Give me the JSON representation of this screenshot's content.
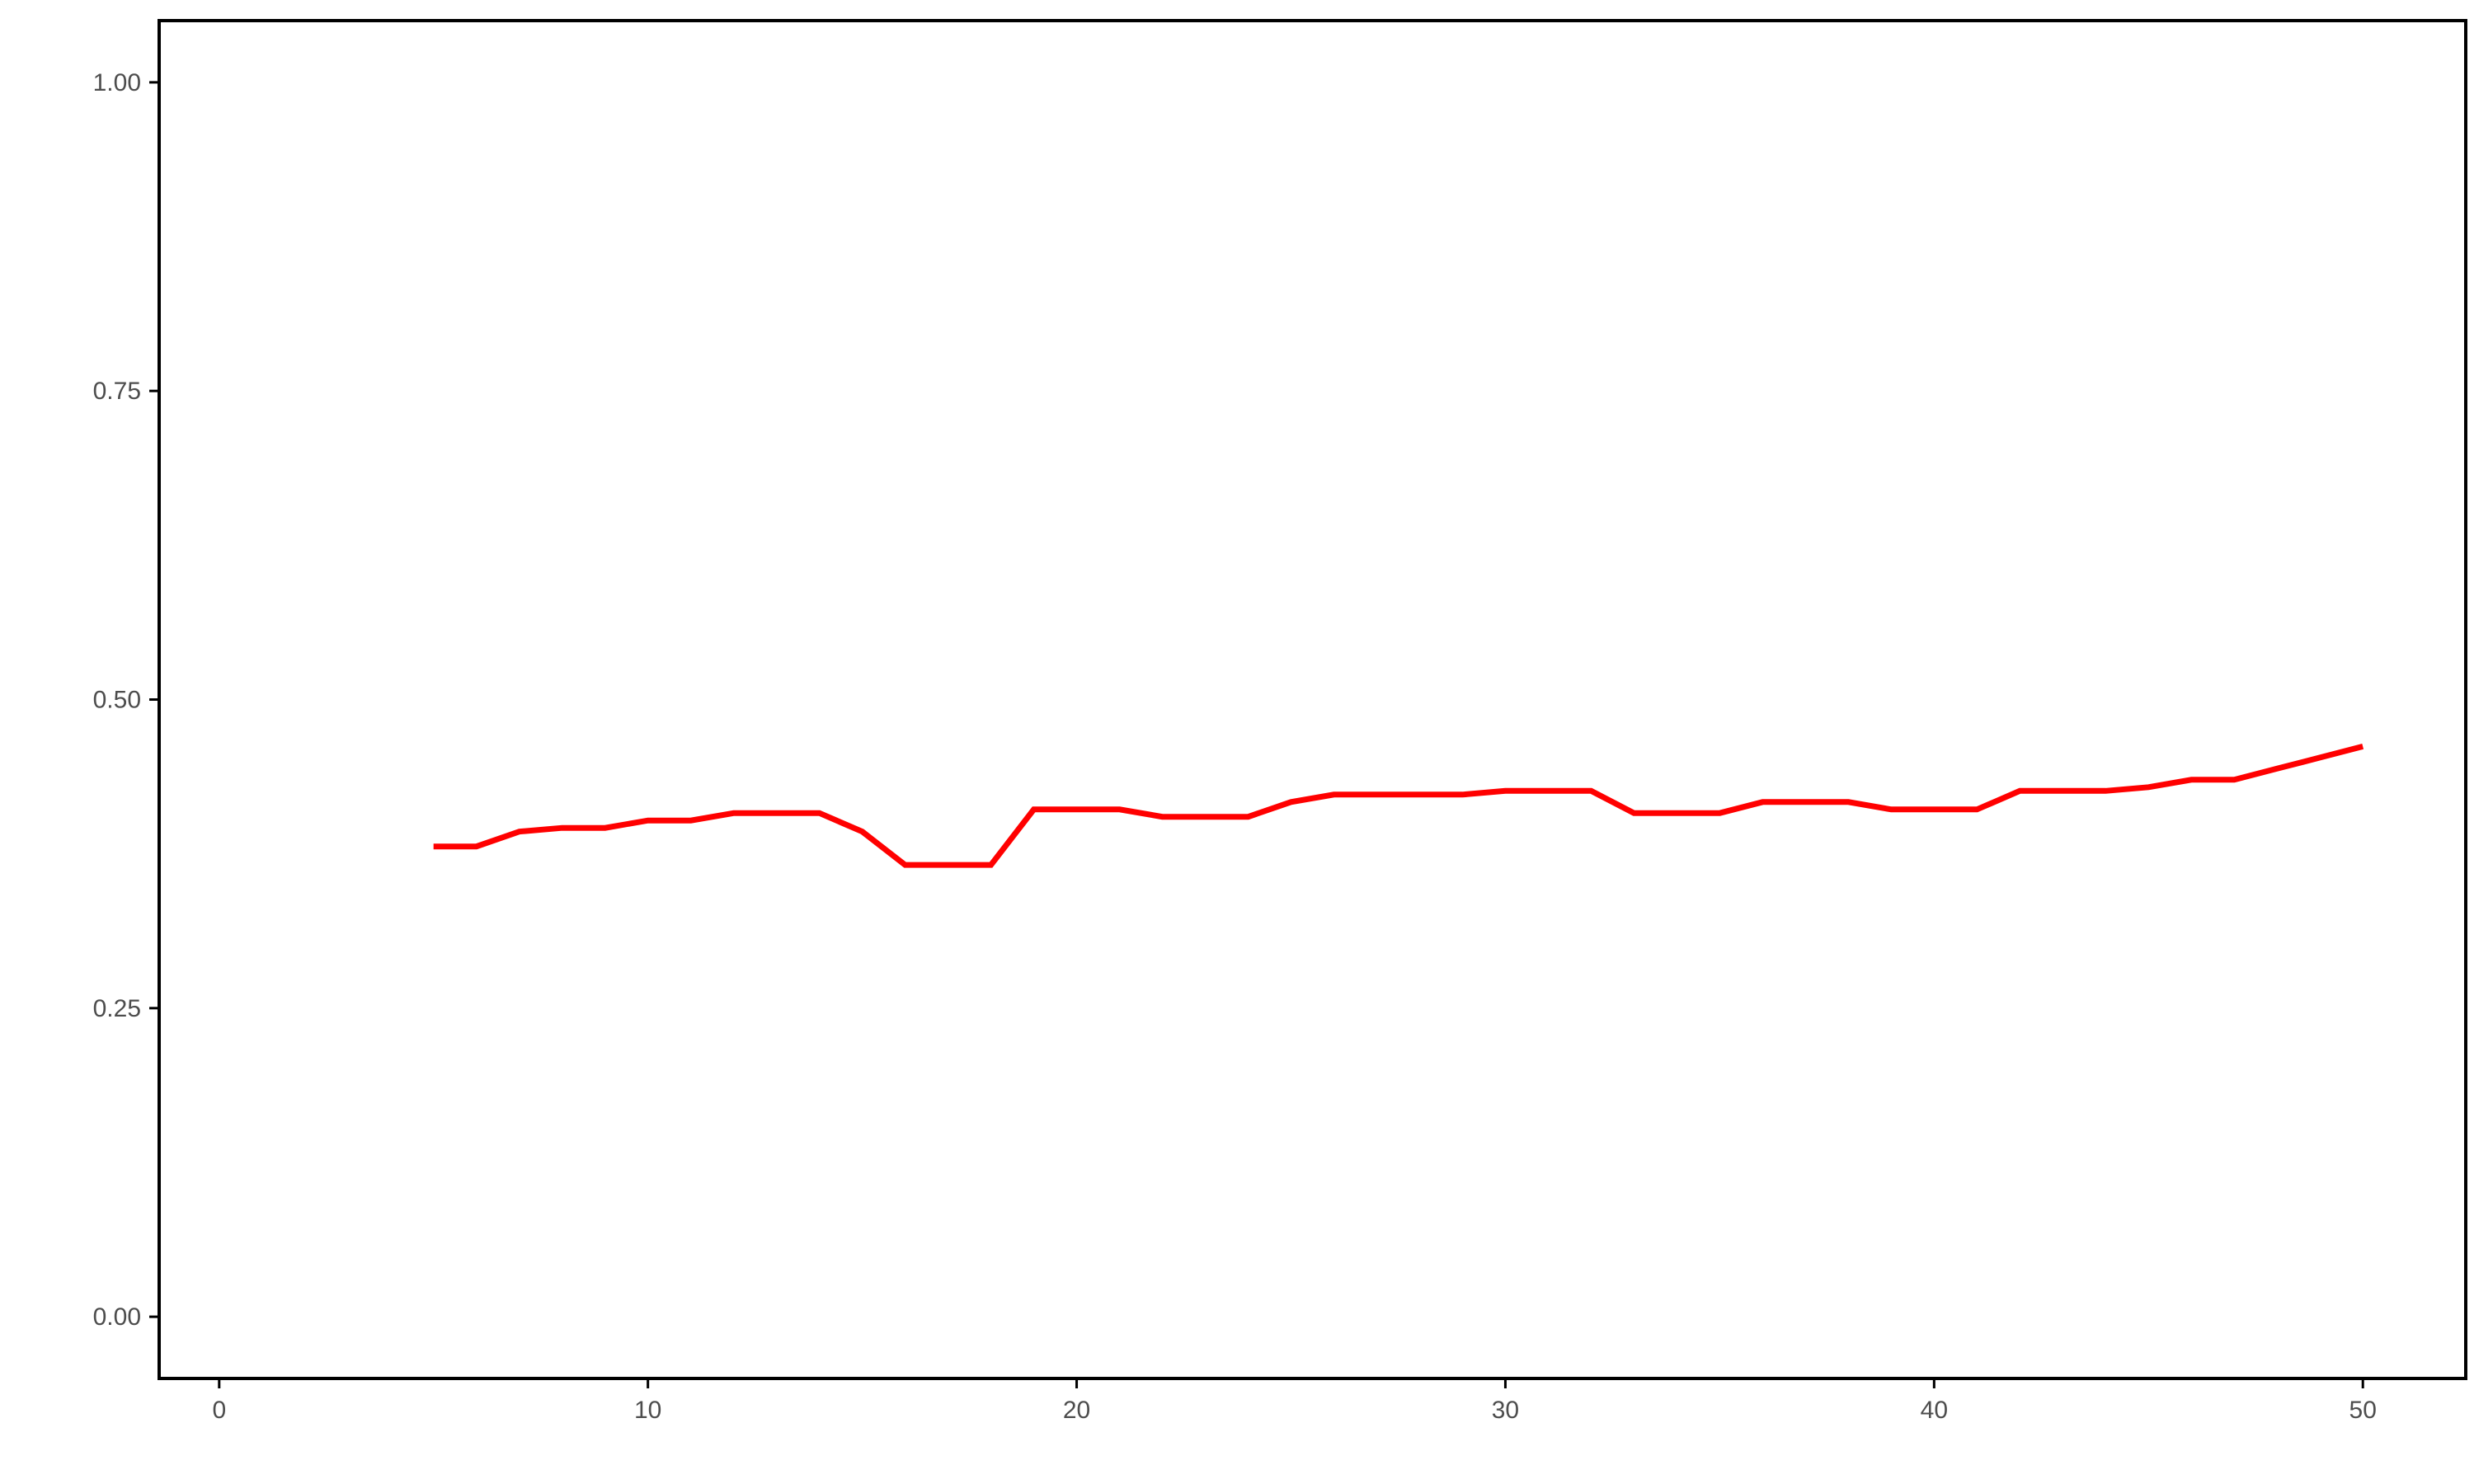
{
  "chart_data": {
    "type": "line",
    "title": "",
    "xlabel": "",
    "ylabel": "",
    "xlim": [
      -1.4,
      52.4
    ],
    "ylim": [
      -0.05,
      1.05
    ],
    "grid": false,
    "legend": "none",
    "x_ticks": [
      {
        "value": 0,
        "label": "0"
      },
      {
        "value": 10,
        "label": "10"
      },
      {
        "value": 20,
        "label": "20"
      },
      {
        "value": 30,
        "label": "30"
      },
      {
        "value": 40,
        "label": "40"
      },
      {
        "value": 50,
        "label": "50"
      }
    ],
    "y_ticks": [
      {
        "value": 0.0,
        "label": "0.00"
      },
      {
        "value": 0.25,
        "label": "0.25"
      },
      {
        "value": 0.5,
        "label": "0.50"
      },
      {
        "value": 0.75,
        "label": "0.75"
      },
      {
        "value": 1.0,
        "label": "1.00"
      }
    ],
    "series": [
      {
        "color": "#ff0000",
        "x": [
          5,
          6,
          7,
          8,
          9,
          10,
          11,
          12,
          13,
          14,
          15,
          16,
          17,
          18,
          19,
          20,
          21,
          22,
          23,
          24,
          25,
          26,
          27,
          28,
          29,
          30,
          31,
          32,
          33,
          34,
          35,
          36,
          37,
          38,
          39,
          40,
          41,
          42,
          43,
          44,
          45,
          46,
          47,
          48,
          49,
          50
        ],
        "y": [
          0.381,
          0.381,
          0.393,
          0.396,
          0.396,
          0.402,
          0.402,
          0.408,
          0.408,
          0.408,
          0.393,
          0.366,
          0.366,
          0.366,
          0.411,
          0.411,
          0.411,
          0.405,
          0.405,
          0.405,
          0.417,
          0.423,
          0.423,
          0.423,
          0.423,
          0.426,
          0.426,
          0.426,
          0.408,
          0.408,
          0.408,
          0.417,
          0.417,
          0.417,
          0.411,
          0.411,
          0.411,
          0.426,
          0.426,
          0.426,
          0.429,
          0.435,
          0.435,
          0.444,
          0.453,
          0.462
        ]
      }
    ]
  }
}
